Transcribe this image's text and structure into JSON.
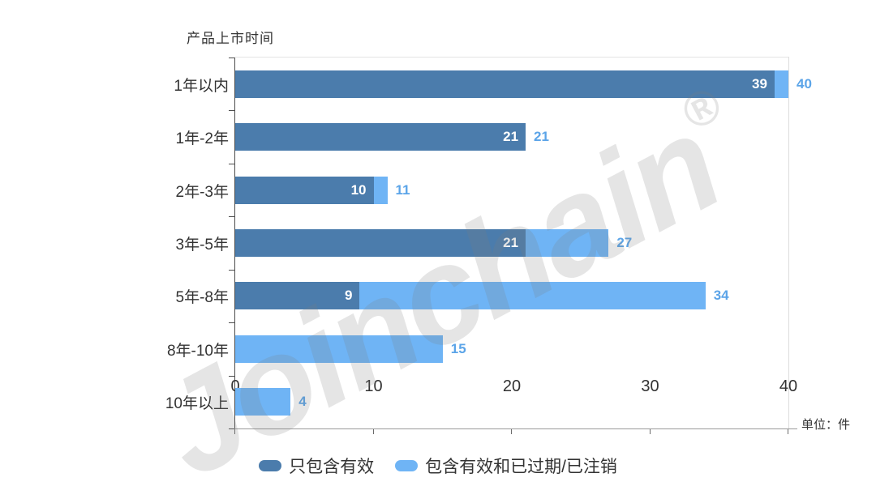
{
  "chart": {
    "title": "产品上市时间",
    "unit_label": "单位：件",
    "watermark_text": "Joinchain",
    "watermark_reg": "®"
  },
  "chart_data": {
    "type": "bar",
    "orientation": "horizontal",
    "title": "产品上市时间",
    "unit_label": "单位：件",
    "categories": [
      "1年以内",
      "1年-2年",
      "2年-3年",
      "3年-5年",
      "5年-8年",
      "8年-10年",
      "10年以上"
    ],
    "series": [
      {
        "name": "只包含有效",
        "color": "#4b7cac",
        "label_color": "#ffffff",
        "values": [
          39,
          21,
          10,
          21,
          9,
          0,
          0
        ]
      },
      {
        "name": "包含有效和已过期/已注销",
        "color": "#6fb4f5",
        "label_color": "#5ba4e8",
        "values": [
          40,
          21,
          11,
          27,
          34,
          15,
          4
        ]
      }
    ],
    "x_ticks": [
      0,
      10,
      20,
      30,
      40
    ],
    "xlim": [
      0,
      40
    ],
    "grid": "right-and-top-border-only",
    "legend_position": "bottom-center",
    "value_labels": "dark-inside-white, light-outside-blue",
    "watermark": "Joinchain®"
  }
}
